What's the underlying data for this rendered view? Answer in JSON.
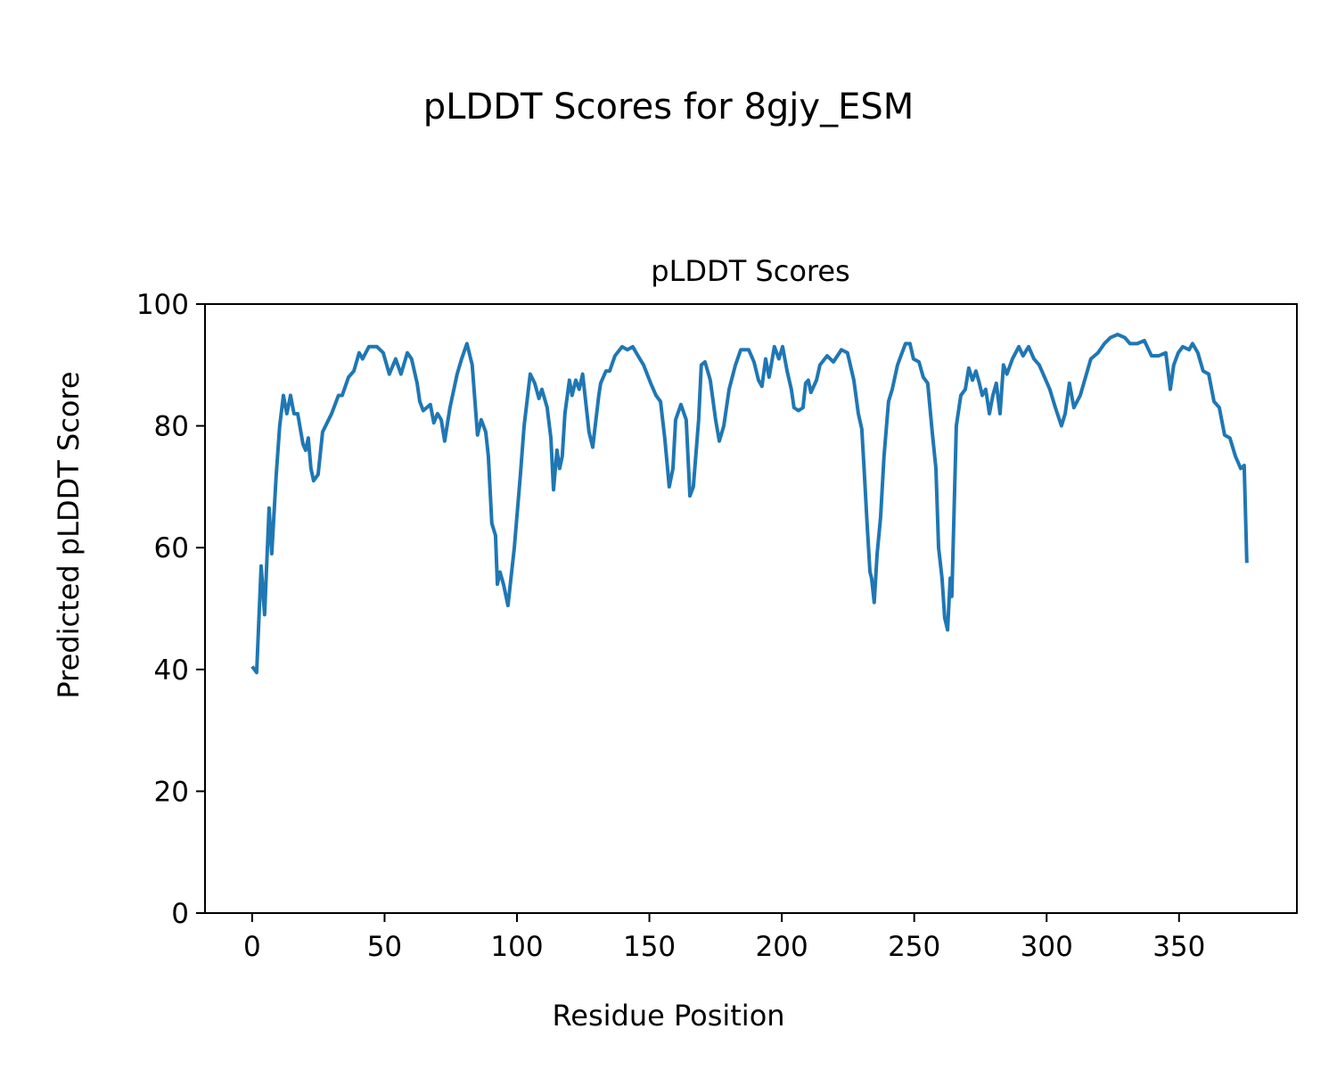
{
  "chart_data": {
    "type": "line",
    "suptitle": "pLDDT Scores for 8gjy_ESM",
    "title": "pLDDT Scores",
    "xlabel": "Residue Position",
    "ylabel": "Predicted pLDDT Score",
    "color": "#1f77b4",
    "xlim": [
      -17.8,
      394.5
    ],
    "ylim": [
      0,
      100
    ],
    "xticks": [
      0,
      50,
      100,
      150,
      200,
      250,
      300,
      350
    ],
    "yticks": [
      0,
      20,
      40,
      60,
      80,
      100
    ],
    "x": [
      0,
      1.7,
      3.4,
      4.7,
      6.4,
      7.4,
      9.1,
      10.4,
      11.8,
      13.1,
      14.5,
      15.8,
      17.2,
      19.2,
      20.2,
      21.2,
      22.2,
      23.2,
      24.9,
      26.6,
      30,
      32.6,
      34,
      36.4,
      38.4,
      40.4,
      41.7,
      44.1,
      47.1,
      49.5,
      51.8,
      54.2,
      56.2,
      58.6,
      60.2,
      62.3,
      63.3,
      64.6,
      67.3,
      68.6,
      70,
      71.4,
      72.7,
      74.7,
      77.4,
      79.1,
      81.1,
      83.1,
      85.1,
      86.5,
      88.2,
      89.2,
      90.5,
      91.9,
      92.6,
      93.6,
      94.9,
      96.6,
      99,
      101.3,
      102.7,
      105,
      106.7,
      108.3,
      109.4,
      111.4,
      112.8,
      113.8,
      115.1,
      116.1,
      117.1,
      118.1,
      119.8,
      120.8,
      122.2,
      123.5,
      124.8,
      126.2,
      127.2,
      128.6,
      130.9,
      131.6,
      133.6,
      135,
      137,
      139.7,
      141.7,
      143.7,
      145.7,
      147.8,
      150.5,
      152.5,
      154.2,
      155.8,
      157.5,
      158.9,
      159.9,
      161.9,
      163.9,
      165.3,
      166.6,
      168.6,
      169.6,
      171,
      173,
      175,
      176.4,
      178.1,
      180.1,
      182.5,
      184.5,
      187.5,
      189.5,
      191.2,
      192.5,
      193.9,
      195.2,
      197.2,
      198.9,
      200.3,
      202,
      203.6,
      204.6,
      206.3,
      208,
      209,
      210,
      211,
      213.1,
      214.4,
      217.1,
      219.5,
      222.5,
      224.8,
      227.2,
      228.9,
      230.2,
      231.2,
      232.2,
      233.3,
      233.9,
      234.9,
      236,
      237.3,
      238.6,
      240.3,
      241.7,
      243.7,
      245.4,
      246.7,
      248.4,
      249.7,
      251.8,
      253.4,
      255.1,
      256.8,
      258.2,
      259.2,
      260.5,
      261.5,
      262.6,
      263.6,
      264.2,
      265.9,
      267.6,
      269.3,
      270.6,
      272,
      273.3,
      274.6,
      275.7,
      277,
      278.4,
      279.7,
      281,
      282.4,
      283.7,
      285,
      287.1,
      289.5,
      291.1,
      293.2,
      295.2,
      297.2,
      299.2,
      301.2,
      303.3,
      305.6,
      307,
      308.6,
      310.3,
      312.7,
      314.7,
      316.7,
      319.4,
      321.8,
      324.1,
      326.8,
      329.5,
      331.5,
      334.2,
      336.9,
      339.6,
      342.3,
      345,
      346.7,
      348,
      349.7,
      351.4,
      353.8,
      355.1,
      357.1,
      359.1,
      361.2,
      363.2,
      365.2,
      367.2,
      369.2,
      371.3,
      373.3,
      374.6,
      375.6
    ],
    "values": [
      40.5,
      39.5,
      57,
      49,
      66.5,
      59,
      72,
      80,
      85,
      82,
      85,
      82,
      82,
      77,
      76,
      78,
      73,
      71,
      72,
      79,
      82,
      85,
      85,
      88,
      89,
      92,
      91,
      93,
      93,
      92,
      88.5,
      91,
      88.5,
      92,
      91,
      87,
      84,
      82.5,
      83.5,
      80.5,
      82,
      81,
      77.5,
      83,
      88.5,
      91,
      93.5,
      90,
      78.5,
      81,
      79,
      75,
      64,
      62,
      54,
      56,
      54,
      50.5,
      60,
      72,
      80,
      88.5,
      87,
      84.5,
      86,
      83,
      78,
      69.5,
      76,
      73,
      75,
      82,
      87.5,
      85,
      87.5,
      86,
      88.5,
      83,
      79,
      76.5,
      85,
      87,
      89,
      89,
      91.5,
      93,
      92.5,
      93,
      91.5,
      90,
      87,
      85,
      84,
      78,
      70,
      73,
      81,
      83.5,
      81,
      68.5,
      70,
      81,
      90,
      90.5,
      87.5,
      81,
      77.5,
      80,
      86,
      90,
      92.5,
      92.5,
      90.5,
      87.5,
      86.5,
      91,
      88,
      93,
      91,
      93,
      89,
      86,
      83,
      82.5,
      83,
      87,
      87.5,
      85.5,
      87.5,
      90,
      91.5,
      90.5,
      92.5,
      92,
      87.5,
      82,
      79.5,
      72,
      64,
      56,
      55,
      51,
      59,
      65,
      75,
      84,
      86,
      90,
      92,
      93.5,
      93.5,
      91,
      90.5,
      88,
      87,
      79,
      73,
      60,
      55,
      48.5,
      46.5,
      55,
      52,
      80,
      85,
      86,
      89.5,
      87.5,
      89,
      87,
      85,
      86,
      82,
      85,
      87,
      82,
      90,
      88.5,
      91,
      93,
      91.5,
      93,
      91,
      90,
      88,
      86,
      83,
      80,
      82,
      87,
      83,
      85,
      88,
      91,
      92,
      93.5,
      94.5,
      95,
      94.5,
      93.5,
      93.5,
      94,
      91.5,
      91.5,
      92,
      86,
      90,
      92,
      93,
      92.5,
      93.5,
      92,
      89,
      88.5,
      84,
      83,
      78.5,
      78,
      75,
      73,
      73.5,
      57.5
    ]
  }
}
